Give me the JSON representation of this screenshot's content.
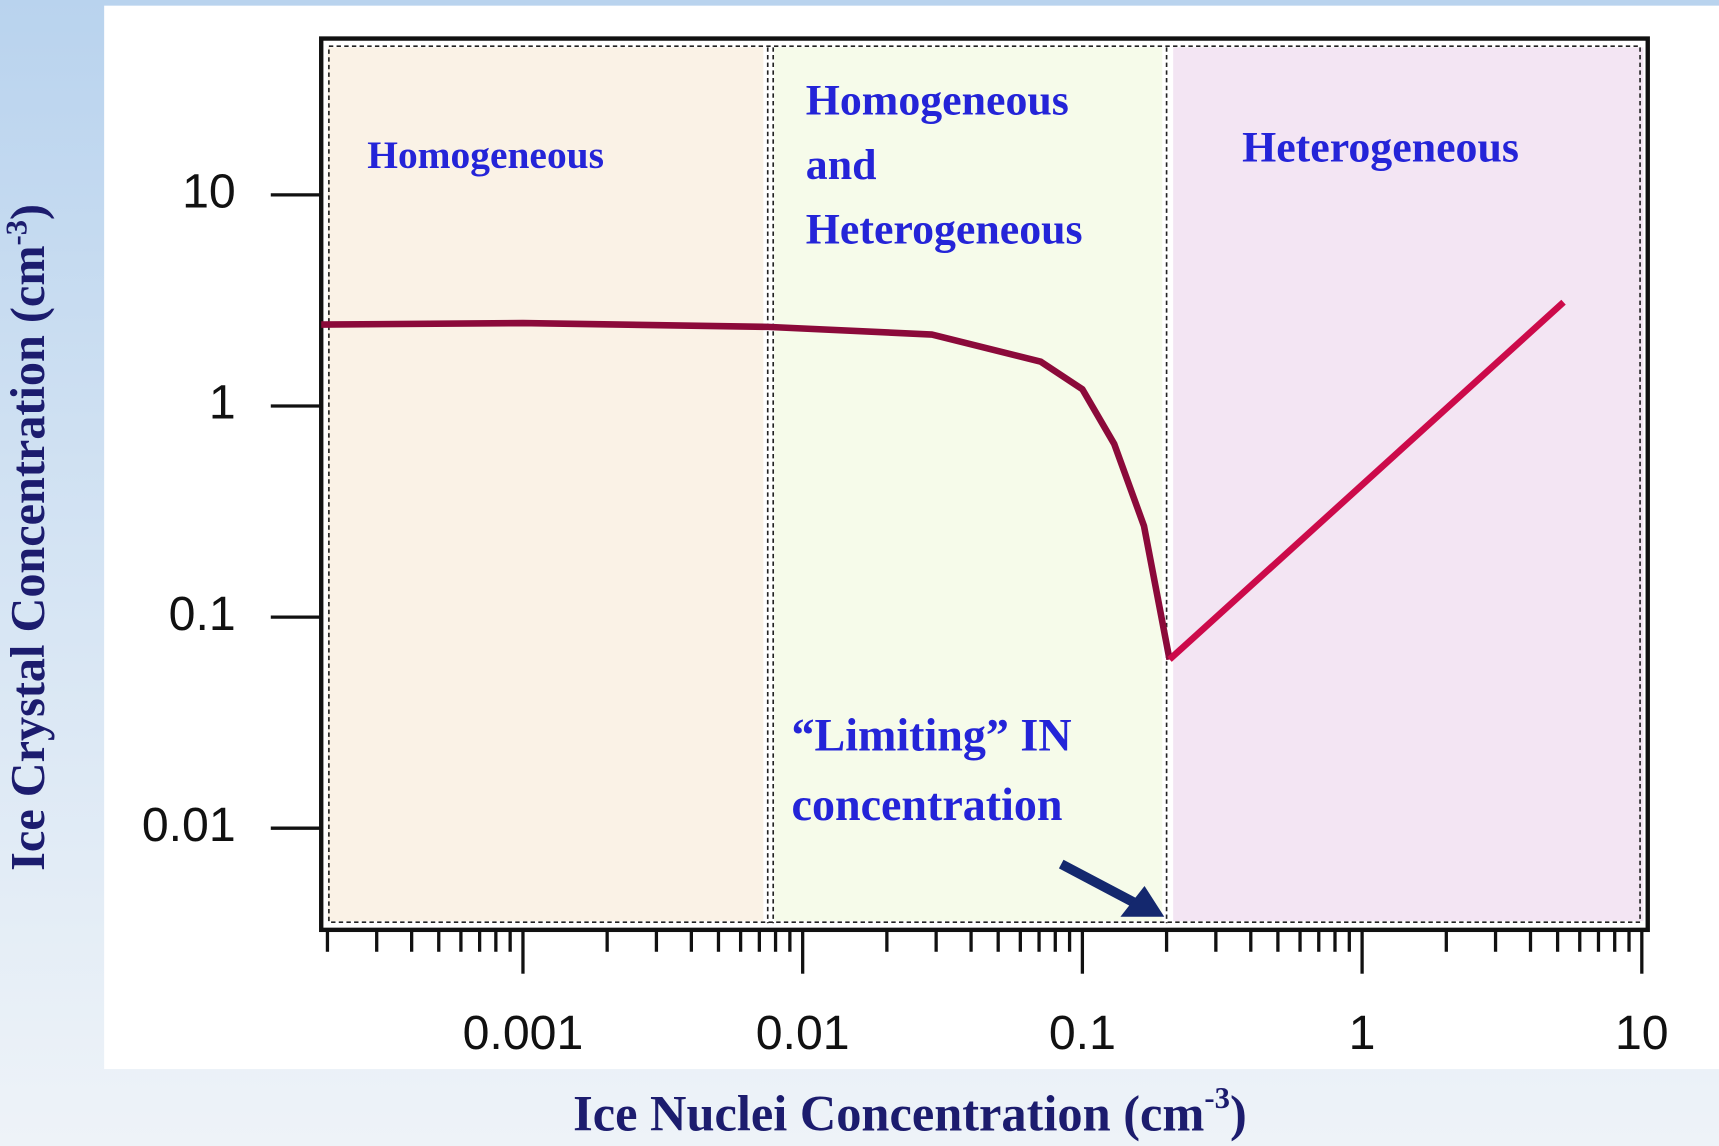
{
  "chart_data": {
    "type": "line",
    "x_label": [
      "Ice Nuclei Concentration (cm",
      "-3",
      ")"
    ],
    "y_label": [
      "Ice Crystal Concentration (cm",
      "-3",
      ")"
    ],
    "xscale": "log",
    "yscale": "log",
    "xlim": [
      0.00019,
      10.5
    ],
    "ylim": [
      0.0033,
      55
    ],
    "xticks": [
      0.001,
      0.01,
      0.1,
      1,
      10
    ],
    "yticks": [
      0.01,
      0.1,
      1,
      10
    ],
    "regions": [
      {
        "from": 0.00019,
        "to": 0.0075,
        "color": "#faf2e6",
        "lines": [
          "Homogeneous"
        ]
      },
      {
        "from": 0.0075,
        "to": 0.2,
        "color": "#f6fbea",
        "lines": [
          "Homogeneous",
          "and",
          "Heterogeneous"
        ]
      },
      {
        "from": 0.2,
        "to": 10.5,
        "color": "#f3e5f3",
        "lines": [
          "Heterogeneous"
        ]
      }
    ],
    "annotation": [
      "“Limiting” IN",
      "concentration"
    ],
    "series": [
      {
        "color": "#8b0a3a",
        "x": [
          0.00019,
          0.001,
          0.0075,
          0.029,
          0.071,
          0.1,
          0.13,
          0.166,
          0.205
        ],
        "values": [
          2.43,
          2.47,
          2.37,
          2.18,
          1.62,
          1.2,
          0.66,
          0.27,
          0.063
        ]
      },
      {
        "color": "#cc0a4a",
        "x": [
          0.205,
          5.25
        ],
        "values": [
          0.063,
          3.1
        ]
      }
    ]
  }
}
